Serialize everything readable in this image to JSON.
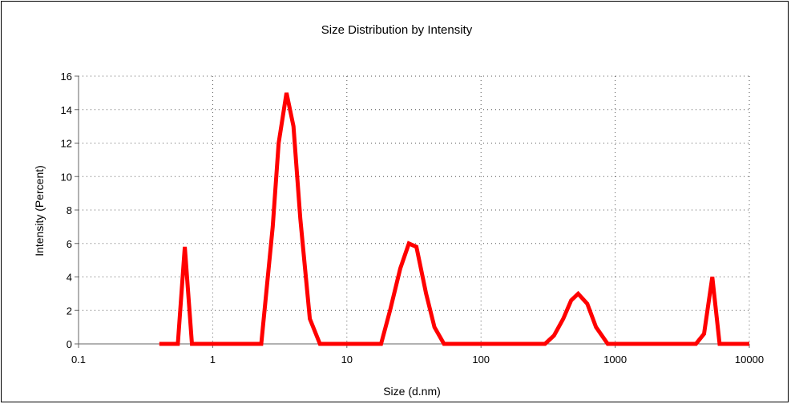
{
  "chart_data": {
    "type": "line",
    "title": "Size Distribution by Intensity",
    "xlabel": "Size (d.nm)",
    "ylabel": "Intensity (Percent)",
    "x_scale": "log",
    "xlim": [
      0.1,
      10000
    ],
    "ylim": [
      0,
      16
    ],
    "x_ticks": [
      0.1,
      1,
      10,
      100,
      1000,
      10000
    ],
    "x_tick_labels": [
      "0.1",
      "1",
      "10",
      "100",
      "1000",
      "10000"
    ],
    "y_ticks": [
      0,
      2,
      4,
      6,
      8,
      10,
      12,
      14,
      16
    ],
    "y_tick_labels": [
      "0",
      "2",
      "4",
      "6",
      "8",
      "10",
      "12",
      "14",
      "16"
    ],
    "grid": true,
    "color": "#ff0000",
    "series": [
      {
        "x": [
          0.4,
          0.55,
          0.62,
          0.7,
          2.3,
          2.8,
          3.1,
          3.55,
          4.0,
          4.5,
          5.3,
          6.3,
          18,
          21,
          25,
          29,
          33,
          39,
          45,
          53,
          300,
          350,
          410,
          470,
          530,
          620,
          720,
          880,
          4000,
          4600,
          5300,
          6000,
          10000
        ],
        "y": [
          0,
          0,
          5.8,
          0,
          0,
          7.0,
          12.0,
          15.0,
          13.0,
          7.5,
          1.5,
          0,
          0,
          2.0,
          4.5,
          6.0,
          5.8,
          3.0,
          1.0,
          0,
          0,
          0.5,
          1.5,
          2.6,
          3.0,
          2.4,
          1.0,
          0,
          0,
          0.6,
          4.0,
          0,
          0
        ]
      }
    ]
  }
}
